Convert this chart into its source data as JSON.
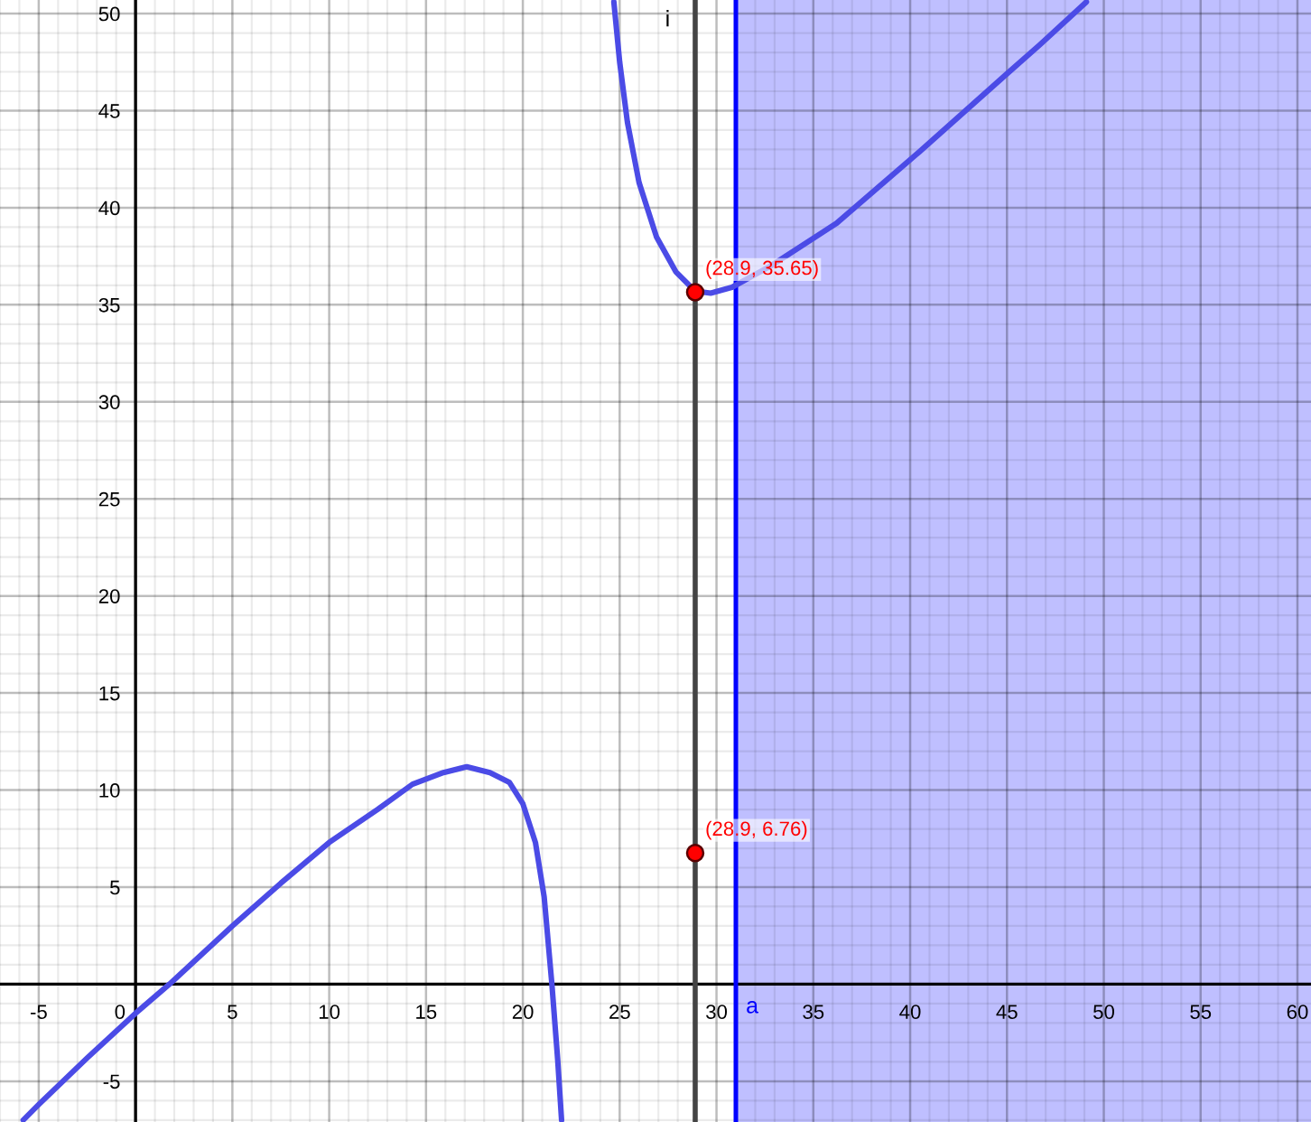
{
  "chart_data": {
    "type": "line",
    "xlim": [
      -7,
      60.7
    ],
    "ylim": [
      -7.1,
      50.7
    ],
    "xticks": [
      -5,
      0,
      5,
      10,
      15,
      20,
      25,
      30,
      35,
      40,
      45,
      50,
      55,
      60
    ],
    "yticks": [
      -5,
      5,
      10,
      15,
      20,
      25,
      30,
      35,
      40,
      45,
      50
    ],
    "grid": true,
    "series": [
      {
        "color": "#4b4be6",
        "x": [
          -5.8,
          -5,
          -2.5,
          0,
          1.75,
          5,
          7.5,
          10,
          12.5,
          14.3,
          15.9,
          17.1,
          18.3,
          19.3,
          20.0,
          20.65,
          21.1,
          21.5,
          21.8,
          22.0
        ],
        "values": [
          -7.0,
          -6.2,
          -3.8,
          -1.5,
          0,
          3.0,
          5.2,
          7.3,
          9.0,
          10.3,
          10.9,
          11.2,
          10.9,
          10.4,
          9.3,
          7.3,
          4.5,
          0,
          -3.9,
          -7.0
        ]
      },
      {
        "color": "#4b4be6",
        "x": [
          24.7,
          25.0,
          25.4,
          26.0,
          26.9,
          27.9,
          28.9,
          29.7,
          30.8,
          32.8,
          36.2,
          40.5,
          45.0,
          46.7,
          49.1
        ],
        "values": [
          50.6,
          47.5,
          44.4,
          41.3,
          38.5,
          36.7,
          35.7,
          35.6,
          35.9,
          37.0,
          39.2,
          42.9,
          46.9,
          48.4,
          50.6
        ]
      },
      {
        "type": "scatter",
        "color": "#ff0000",
        "marker": "circle",
        "x": [
          28.9
        ],
        "values": [
          35.65
        ],
        "value_labels": [
          "(28.9, 35.65)"
        ]
      },
      {
        "type": "scatter",
        "color": "#ff0000",
        "marker": "circle",
        "x": [
          28.9
        ],
        "values": [
          6.76
        ],
        "value_labels": [
          "(28.9, 6.76)"
        ]
      }
    ],
    "ref_lines": [
      {
        "axis": "x",
        "value": 28.9,
        "label": "i",
        "color": "#444444"
      },
      {
        "axis": "x",
        "value": 31,
        "label": "a",
        "color": "#0000ff"
      }
    ],
    "bands": [
      {
        "axis": "x",
        "from": 31,
        "to": 60.7,
        "color": "#bfbfff"
      }
    ]
  }
}
